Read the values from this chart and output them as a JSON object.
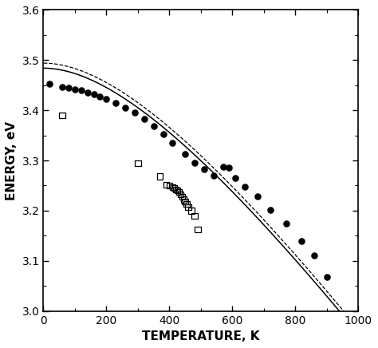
{
  "title": "",
  "xlabel": "TEMPERATURE, K",
  "ylabel": "ENERGY, eV",
  "xlim": [
    0,
    1000
  ],
  "ylim": [
    3.0,
    3.6
  ],
  "xticks": [
    0,
    200,
    400,
    600,
    800,
    1000
  ],
  "yticks": [
    3.0,
    3.1,
    3.2,
    3.3,
    3.4,
    3.5,
    3.6
  ],
  "filled_circles": [
    [
      20,
      3.452
    ],
    [
      60,
      3.447
    ],
    [
      80,
      3.445
    ],
    [
      100,
      3.442
    ],
    [
      120,
      3.44
    ],
    [
      140,
      3.436
    ],
    [
      160,
      3.432
    ],
    [
      180,
      3.428
    ],
    [
      200,
      3.422
    ],
    [
      230,
      3.415
    ],
    [
      260,
      3.405
    ],
    [
      290,
      3.395
    ],
    [
      320,
      3.383
    ],
    [
      350,
      3.368
    ],
    [
      380,
      3.352
    ],
    [
      410,
      3.335
    ],
    [
      450,
      3.312
    ],
    [
      480,
      3.295
    ],
    [
      510,
      3.283
    ],
    [
      540,
      3.27
    ],
    [
      570,
      3.287
    ],
    [
      590,
      3.285
    ],
    [
      610,
      3.265
    ],
    [
      640,
      3.247
    ],
    [
      680,
      3.228
    ],
    [
      720,
      3.202
    ],
    [
      770,
      3.175
    ],
    [
      820,
      3.14
    ],
    [
      860,
      3.11
    ],
    [
      900,
      3.068
    ]
  ],
  "open_squares": [
    [
      60,
      3.39
    ],
    [
      300,
      3.295
    ],
    [
      370,
      3.268
    ],
    [
      390,
      3.252
    ],
    [
      400,
      3.25
    ],
    [
      410,
      3.247
    ],
    [
      415,
      3.245
    ],
    [
      420,
      3.242
    ],
    [
      425,
      3.24
    ],
    [
      430,
      3.237
    ],
    [
      435,
      3.232
    ],
    [
      440,
      3.228
    ],
    [
      445,
      3.222
    ],
    [
      450,
      3.218
    ],
    [
      455,
      3.213
    ],
    [
      460,
      3.207
    ],
    [
      470,
      3.2
    ],
    [
      480,
      3.19
    ],
    [
      490,
      3.162
    ]
  ],
  "curve_solid": {
    "E0": 3.484,
    "alpha": 0.000939,
    "beta": 772
  },
  "curve_dashed": {
    "E0": 3.494,
    "alpha": 0.000939,
    "beta": 772
  },
  "background_color": "#ffffff",
  "axes_color": "#000000",
  "data_color": "#000000",
  "curve_color": "#000000",
  "figsize": [
    4.74,
    4.36
  ],
  "dpi": 100
}
